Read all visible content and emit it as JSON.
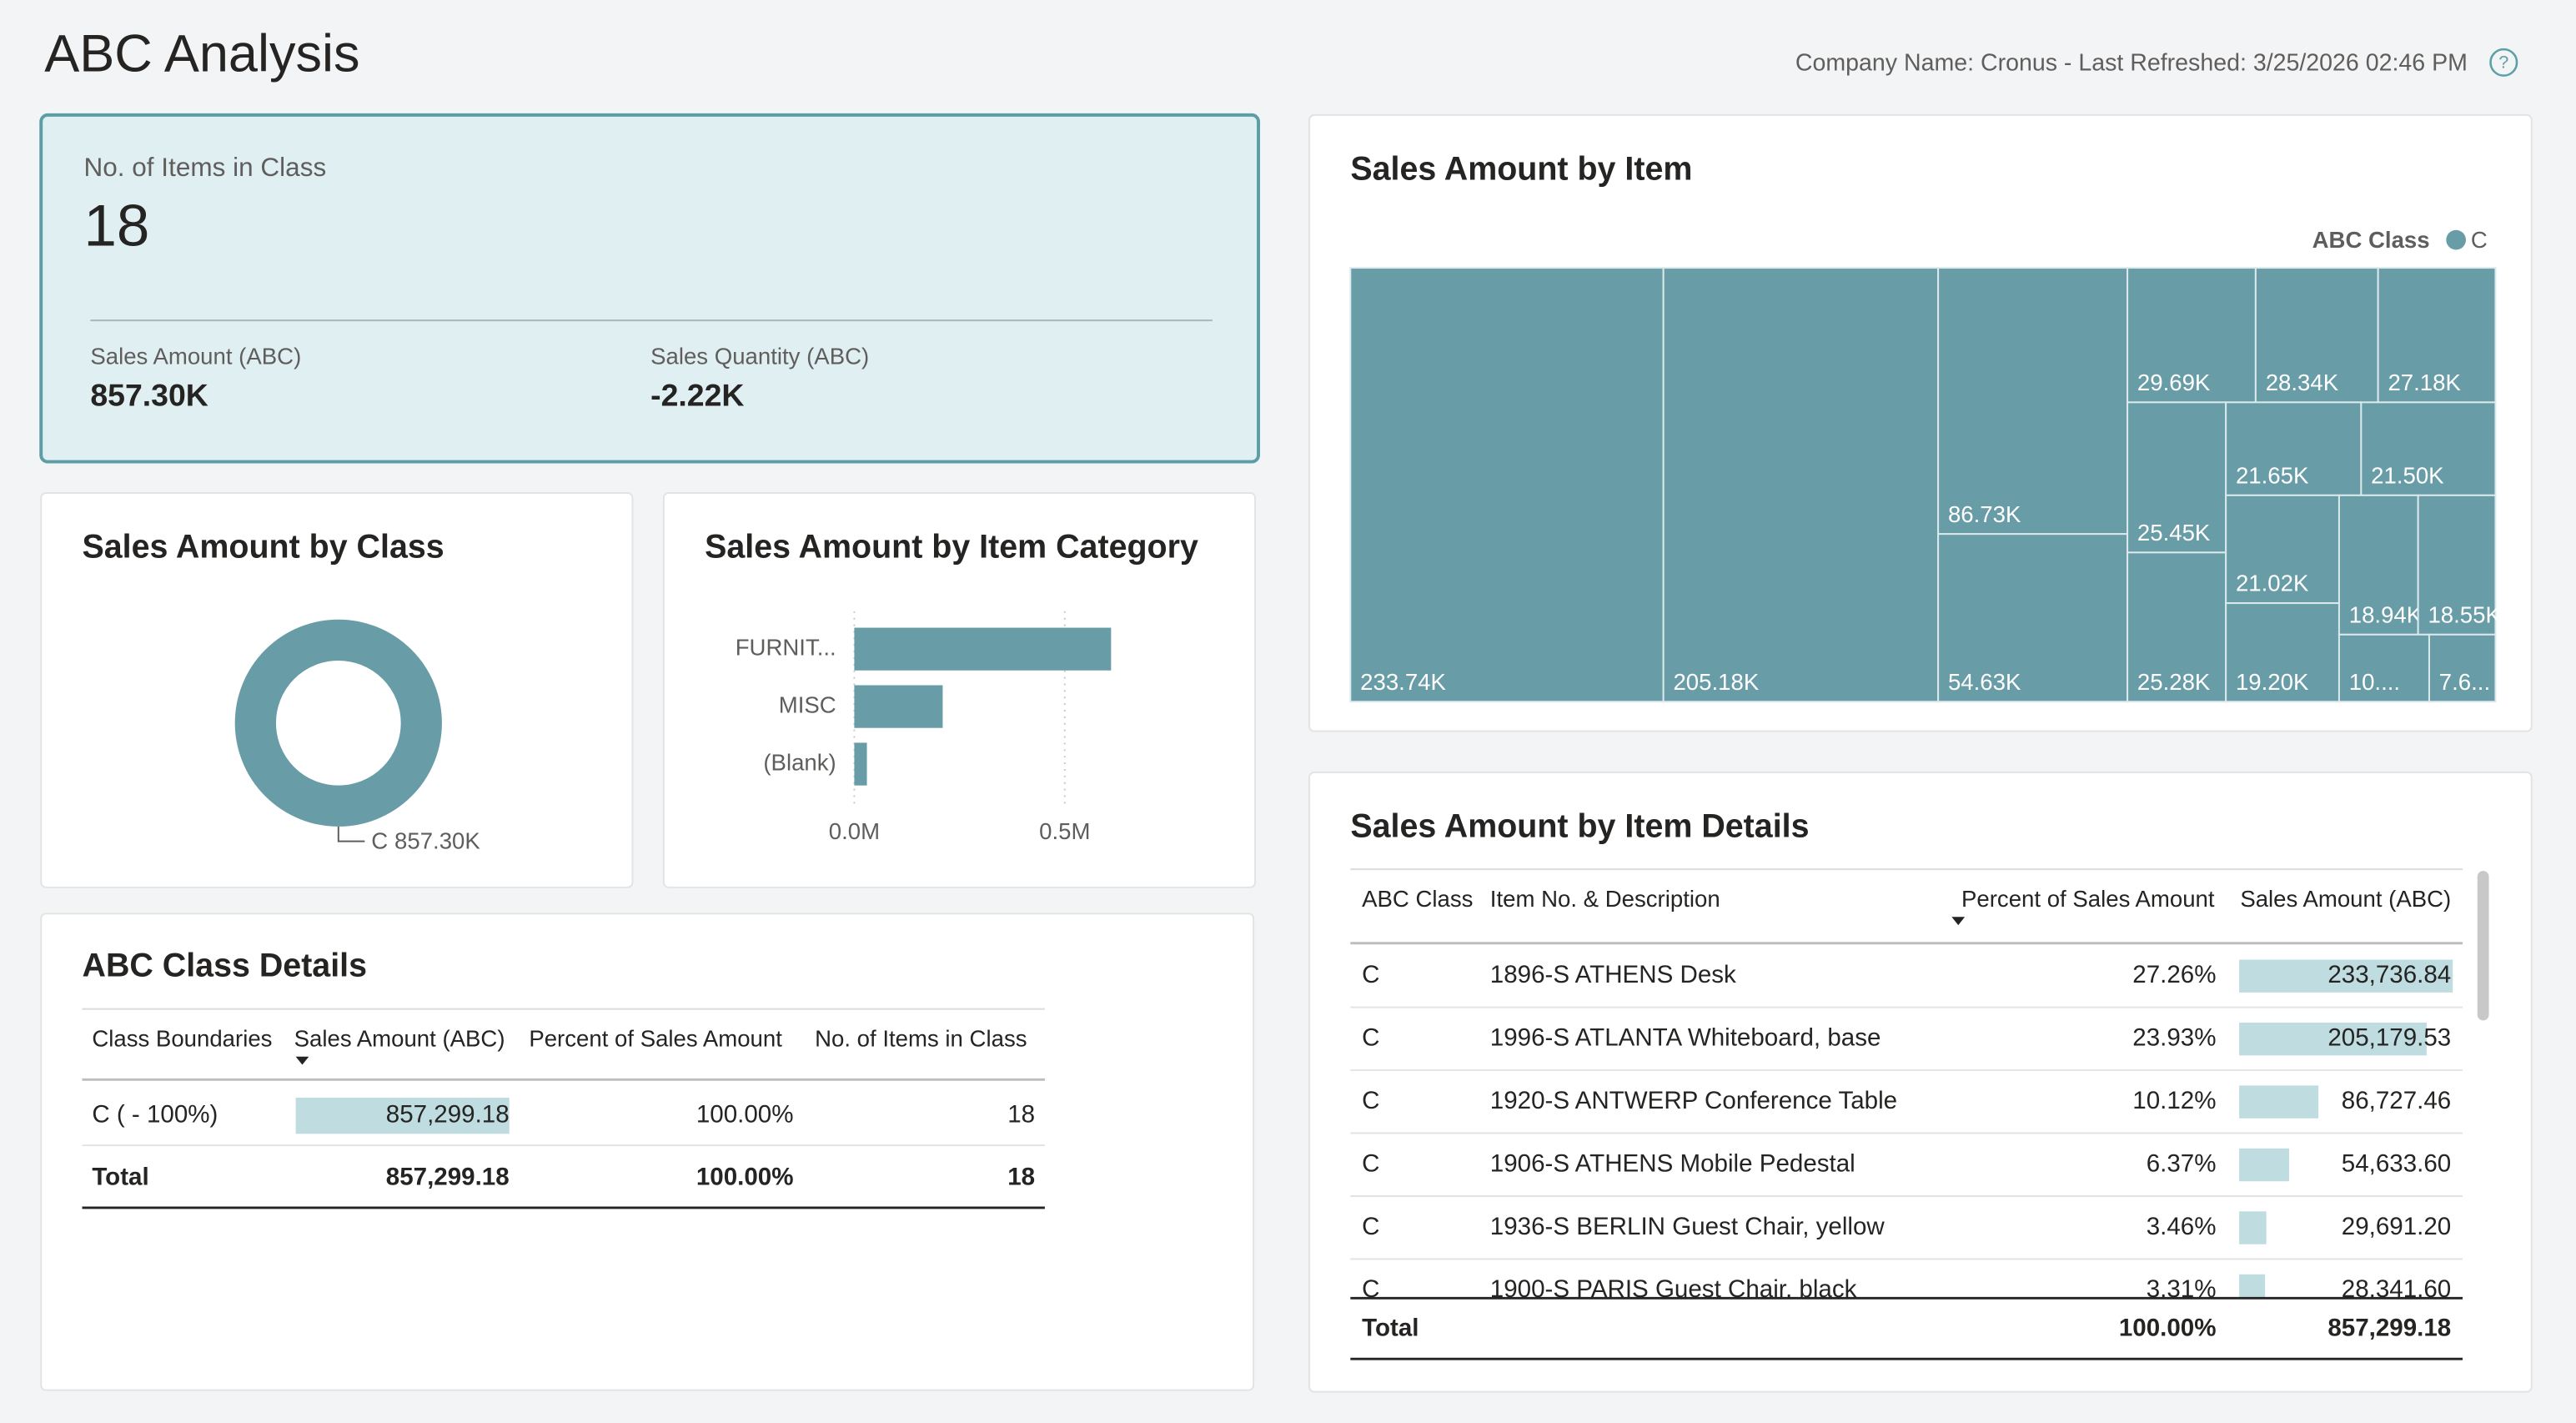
{
  "header": {
    "title": "ABC Analysis",
    "info": "Company Name: Cronus - Last Refreshed: 3/25/2026 02:46 PM",
    "help": "?"
  },
  "kpi": {
    "label": "No. of Items in Class",
    "value": 18,
    "sales_amount_label": "Sales Amount (ABC)",
    "sales_amount": "857.30K",
    "sales_quantity_label": "Sales Quantity (ABC)",
    "sales_quantity": "-2.22K"
  },
  "chart_data": [
    {
      "type": "donut",
      "title": "Sales Amount by Class",
      "categories": [
        "C"
      ],
      "values": [
        857299.18
      ],
      "value_labels": [
        "857.30K"
      ],
      "colors": [
        "#689da7"
      ]
    },
    {
      "type": "bar",
      "title": "Sales Amount by Item Category",
      "categories": [
        "FURNIT...",
        "MISC",
        "(Blank)"
      ],
      "values": [
        0.61,
        0.21,
        0.03
      ],
      "color": "#689da7",
      "xlim": [
        0,
        0.8
      ],
      "xticks": [
        {
          "value": 0,
          "label": "0.0M"
        },
        {
          "value": 0.5,
          "label": "0.5M"
        }
      ],
      "grid": true
    },
    {
      "type": "treemap",
      "title": "Sales Amount by Item",
      "legend_title": "ABC Class",
      "series": [
        {
          "name": "C",
          "color": "#689da7",
          "values": [
            233.74,
            205.18,
            86.73,
            54.63,
            29.69,
            28.34,
            27.18,
            25.45,
            25.28,
            21.65,
            21.5,
            21.02,
            19.2,
            18.94,
            18.55,
            10.4,
            7.65
          ],
          "value_labels": [
            "233.74K",
            "205.18K",
            "86.73K",
            "54.63K",
            "29.69K",
            "28.34K",
            "27.18K",
            "25.45K",
            "25.28K",
            "21.65K",
            "21.50K",
            "21.02K",
            "19.20K",
            "18.94K",
            "18.55K",
            "10....",
            "7.6..."
          ]
        }
      ]
    }
  ],
  "class_details": {
    "title": "ABC Class Details",
    "columns": [
      "Class Boundaries",
      "Sales Amount (ABC)",
      "Percent of Sales Amount",
      "No. of Items in Class"
    ],
    "rows": [
      {
        "class": "C ( - 100%)",
        "sales_amount": 857299.18,
        "sales_amount_label": "857,299.18",
        "percent": "100.00%",
        "items": 18
      }
    ],
    "total": {
      "label": "Total",
      "sales_amount": "857,299.18",
      "percent": "100.00%",
      "items": 18
    }
  },
  "item_details": {
    "title": "Sales Amount by Item Details",
    "columns": [
      "ABC Class",
      "Item No. & Description",
      "Percent of Sales Amount",
      "Sales Amount (ABC)"
    ],
    "rows": [
      {
        "class": "C",
        "item": "1896-S ATHENS Desk",
        "percent": "27.26%",
        "sales_amount": 233736.84,
        "sales_amount_label": "233,736.84"
      },
      {
        "class": "C",
        "item": "1996-S ATLANTA Whiteboard, base",
        "percent": "23.93%",
        "sales_amount": 205179.53,
        "sales_amount_label": "205,179.53"
      },
      {
        "class": "C",
        "item": "1920-S ANTWERP Conference Table",
        "percent": "10.12%",
        "sales_amount": 86727.46,
        "sales_amount_label": "86,727.46"
      },
      {
        "class": "C",
        "item": "1906-S ATHENS Mobile Pedestal",
        "percent": "6.37%",
        "sales_amount": 54633.6,
        "sales_amount_label": "54,633.60"
      },
      {
        "class": "C",
        "item": "1936-S BERLIN Guest Chair, yellow",
        "percent": "3.46%",
        "sales_amount": 29691.2,
        "sales_amount_label": "29,691.20"
      },
      {
        "class": "C",
        "item": "1900-S PARIS Guest Chair, black",
        "percent": "3.31%",
        "sales_amount": 28341.6,
        "sales_amount_label": "28,341.60"
      }
    ],
    "total": {
      "label": "Total",
      "percent": "100.00%",
      "sales_amount": "857,299.18"
    }
  }
}
